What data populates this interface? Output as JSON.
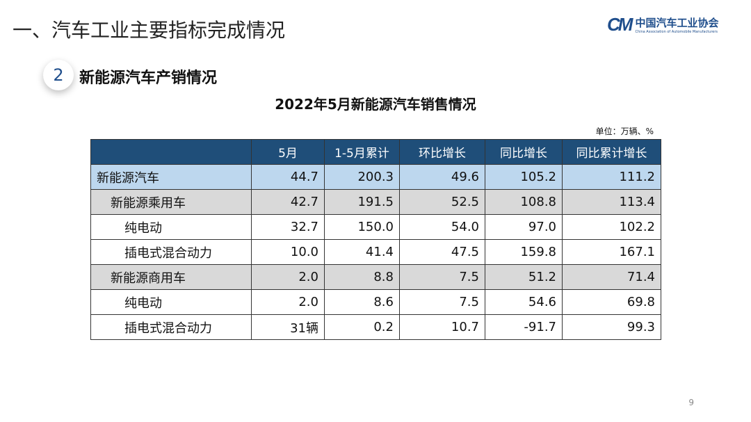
{
  "header": {
    "title": "一、汽车工业主要指标完成情况",
    "logo_cn": "中国汽车工业协会",
    "logo_en": "China Association of Automobile Manufacturers",
    "logo_mark": "CM"
  },
  "section": {
    "number": "2",
    "title": "新能源汽车产销情况"
  },
  "table": {
    "title": "2022年5月新能源汽车销售情况",
    "unit": "单位：万辆、%",
    "columns": [
      "",
      "5月",
      "1-5月累计",
      "环比增长",
      "同比增长",
      "同比累计增长"
    ],
    "rows": [
      {
        "label": "新能源汽车",
        "level": 0,
        "values": [
          "44.7",
          "200.3",
          "49.6",
          "105.2",
          "111.2"
        ]
      },
      {
        "label": "新能源乘用车",
        "level": 1,
        "values": [
          "42.7",
          "191.5",
          "52.5",
          "108.8",
          "113.4"
        ]
      },
      {
        "label": "纯电动",
        "level": 2,
        "values": [
          "32.7",
          "150.0",
          "54.0",
          "97.0",
          "102.2"
        ]
      },
      {
        "label": "插电式混合动力",
        "level": 2,
        "values": [
          "10.0",
          "41.4",
          "47.5",
          "159.8",
          "167.1"
        ]
      },
      {
        "label": "新能源商用车",
        "level": 1,
        "values": [
          "2.0",
          "8.8",
          "7.5",
          "51.2",
          "71.4"
        ]
      },
      {
        "label": "纯电动",
        "level": 2,
        "values": [
          "2.0",
          "8.6",
          "7.5",
          "54.6",
          "69.8"
        ]
      },
      {
        "label": "插电式混合动力",
        "level": 2,
        "values": [
          "31辆",
          "0.2",
          "10.7",
          "-91.7",
          "99.3"
        ]
      }
    ]
  },
  "page_number": "9"
}
